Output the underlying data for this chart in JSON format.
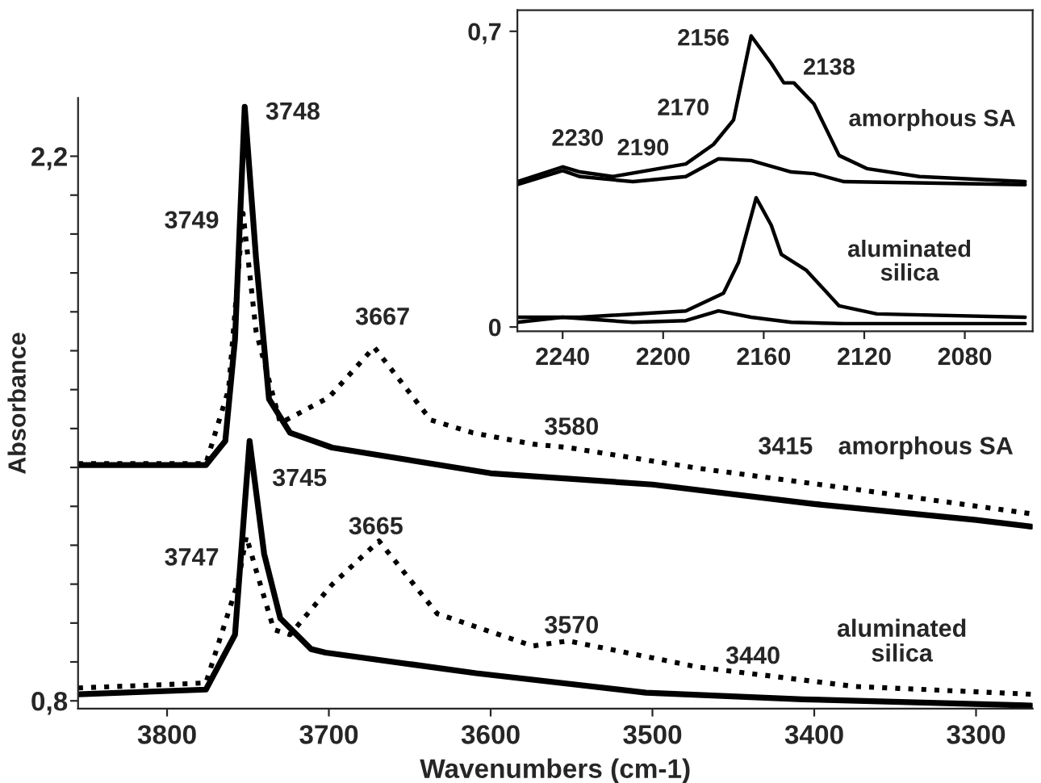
{
  "chart_data": [
    {
      "type": "line",
      "xlabel": "Wavenumbers (cm-1)",
      "ylabel": "Absorbance",
      "xlim": [
        3855,
        3265
      ],
      "ylim": [
        0.78,
        2.35
      ],
      "xticks": [
        3800,
        3700,
        3600,
        3500,
        3400,
        3300
      ],
      "yticks": [
        {
          "value": 0.8,
          "label": "0,8"
        },
        {
          "value": 0.9,
          "label": null
        },
        {
          "value": 1.0,
          "label": null
        },
        {
          "value": 1.1,
          "label": null
        },
        {
          "value": 1.2,
          "label": null
        },
        {
          "value": 1.3,
          "label": null
        },
        {
          "value": 1.4,
          "label": null
        },
        {
          "value": 1.5,
          "label": null
        },
        {
          "value": 1.6,
          "label": null
        },
        {
          "value": 1.7,
          "label": null
        },
        {
          "value": 1.8,
          "label": null
        },
        {
          "value": 1.9,
          "label": null
        },
        {
          "value": 2.0,
          "label": null
        },
        {
          "value": 2.1,
          "label": null
        },
        {
          "value": 2.2,
          "label": "2,2"
        }
      ],
      "grid": false,
      "legend": false,
      "series": [
        {
          "color": "#000000",
          "line_style": "solid",
          "x": [
            3855,
            3776,
            3764,
            3758,
            3752,
            3745,
            3737,
            3724,
            3698,
            3600,
            3500,
            3400,
            3300,
            3266
          ],
          "values": [
            1.406,
            1.406,
            1.468,
            1.73,
            2.327,
            1.937,
            1.576,
            1.489,
            1.451,
            1.385,
            1.356,
            1.306,
            1.265,
            1.248
          ]
        },
        {
          "color": "#000000",
          "line_style": "dotted",
          "x": [
            3855,
            3776,
            3762,
            3753,
            3745,
            3730,
            3700,
            3672,
            3637,
            3611,
            3574,
            3552,
            3472,
            3375,
            3266
          ],
          "values": [
            1.41,
            1.41,
            1.6,
            2.053,
            1.75,
            1.514,
            1.58,
            1.709,
            1.522,
            1.489,
            1.46,
            1.451,
            1.398,
            1.344,
            1.281
          ]
        },
        {
          "color": "#000000",
          "line_style": "solid",
          "x": [
            3855,
            3776,
            3758,
            3749,
            3740,
            3730,
            3711,
            3702,
            3609,
            3504,
            3407,
            3266
          ],
          "values": [
            0.817,
            0.829,
            0.97,
            1.468,
            1.178,
            1.012,
            0.933,
            0.924,
            0.871,
            0.821,
            0.804,
            0.788
          ]
        },
        {
          "color": "#000000",
          "line_style": "dotted",
          "x": [
            3855,
            3776,
            3756,
            3751,
            3745,
            3734,
            3724,
            3698,
            3669,
            3633,
            3574,
            3552,
            3472,
            3375,
            3266
          ],
          "values": [
            0.833,
            0.846,
            1.107,
            1.223,
            1.136,
            0.983,
            0.97,
            1.099,
            1.211,
            1.024,
            0.941,
            0.954,
            0.887,
            0.837,
            0.817
          ]
        }
      ],
      "annotations": [
        "3748",
        "3749",
        "3667",
        "3745",
        "3665",
        "3747",
        "3580",
        "3415",
        "amorphous SA",
        "3570",
        "3440",
        "aluminated\nsilica"
      ]
    },
    {
      "type": "line",
      "xlim": [
        2258,
        2053
      ],
      "ylim": [
        -0.01,
        0.75
      ],
      "xticks": [
        2240,
        2200,
        2160,
        2120,
        2080
      ],
      "yticks": [
        {
          "value": 0,
          "label": "0"
        },
        {
          "value": 0.7,
          "label": "0,7"
        }
      ],
      "grid": false,
      "legend": false,
      "series": [
        {
          "color": "#000000",
          "line_style": "solid",
          "x": [
            2258,
            2240,
            2233,
            2220,
            2191,
            2180,
            2172,
            2165,
            2157,
            2152,
            2148,
            2140,
            2130,
            2119,
            2098,
            2056
          ],
          "values": [
            0.344,
            0.379,
            0.367,
            0.356,
            0.386,
            0.432,
            0.49,
            0.689,
            0.624,
            0.578,
            0.578,
            0.528,
            0.406,
            0.375,
            0.356,
            0.344
          ]
        },
        {
          "color": "#000000",
          "line_style": "solid",
          "x": [
            2258,
            2240,
            2233,
            2212,
            2191,
            2178,
            2165,
            2149,
            2140,
            2128,
            2056
          ],
          "values": [
            0.337,
            0.37,
            0.356,
            0.344,
            0.356,
            0.398,
            0.394,
            0.367,
            0.363,
            0.344,
            0.337
          ]
        },
        {
          "color": "#000000",
          "line_style": "solid",
          "x": [
            2258,
            2233,
            2191,
            2176,
            2170,
            2163,
            2157,
            2153,
            2143,
            2130,
            2115,
            2056
          ],
          "values": [
            0.023,
            0.023,
            0.038,
            0.08,
            0.153,
            0.306,
            0.241,
            0.172,
            0.134,
            0.05,
            0.031,
            0.023
          ]
        },
        {
          "color": "#000000",
          "line_style": "solid",
          "x": [
            2258,
            2240,
            2212,
            2191,
            2178,
            2165,
            2149,
            2128,
            2056
          ],
          "values": [
            0.011,
            0.023,
            0.011,
            0.015,
            0.038,
            0.023,
            0.011,
            0.008,
            0.008
          ]
        }
      ],
      "annotations": [
        "2156",
        "2138",
        "2170",
        "2190",
        "2230",
        "amorphous SA",
        "aluminated\nsilica"
      ]
    }
  ]
}
